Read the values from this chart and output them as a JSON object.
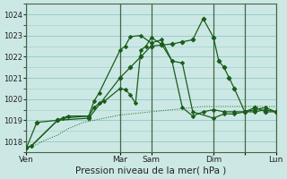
{
  "bg_color": "#cce8e4",
  "grid_color": "#99cccc",
  "line_color": "#1a5c1a",
  "title": "Pression niveau de la mer( hPa )",
  "ylim": [
    1017.5,
    1024.5
  ],
  "yticks": [
    1018,
    1019,
    1020,
    1021,
    1022,
    1023,
    1024
  ],
  "xlim": [
    0,
    48
  ],
  "vlines": [
    0,
    18,
    24,
    36,
    42,
    48
  ],
  "day_tick_pos": [
    0,
    18,
    24,
    36,
    42,
    48
  ],
  "day_tick_labels": [
    "Ven",
    "Mar",
    "Sam",
    "Dim",
    "",
    "Lun"
  ],
  "s1_x": [
    0,
    1,
    2,
    3,
    4,
    5,
    6,
    7,
    8,
    9,
    10,
    11,
    12,
    13,
    14,
    15,
    16,
    17,
    18,
    20,
    22,
    24,
    26,
    28,
    30,
    32,
    34,
    36,
    38,
    40,
    42,
    44,
    46,
    48
  ],
  "s1_y": [
    1017.7,
    1017.8,
    1017.85,
    1018.0,
    1018.1,
    1018.2,
    1018.3,
    1018.45,
    1018.6,
    1018.7,
    1018.8,
    1018.9,
    1018.95,
    1019.0,
    1019.05,
    1019.1,
    1019.15,
    1019.2,
    1019.25,
    1019.3,
    1019.35,
    1019.4,
    1019.45,
    1019.5,
    1019.55,
    1019.6,
    1019.65,
    1019.65,
    1019.65,
    1019.65,
    1019.65,
    1019.65,
    1019.65,
    1019.65
  ],
  "s2_x": [
    0,
    1,
    6,
    7,
    12,
    13,
    14,
    15,
    18,
    19,
    20,
    21,
    22,
    23,
    24,
    26,
    28,
    30,
    32,
    36,
    38,
    40,
    42,
    44,
    46,
    48
  ],
  "s2_y": [
    1017.7,
    1017.8,
    1019.0,
    1019.1,
    1019.2,
    1019.6,
    1019.8,
    1019.9,
    1020.5,
    1020.45,
    1020.2,
    1019.8,
    1022.3,
    1022.5,
    1022.9,
    1022.6,
    1021.8,
    1021.7,
    1019.4,
    1019.1,
    1019.3,
    1019.3,
    1019.4,
    1019.5,
    1019.6,
    1019.4
  ],
  "s3_x": [
    0,
    1,
    6,
    8,
    12,
    13,
    14,
    18,
    19,
    20,
    22,
    24,
    26,
    28,
    30,
    32,
    34,
    36,
    38,
    40,
    42,
    44,
    46,
    48
  ],
  "s3_y": [
    1017.7,
    1017.8,
    1019.0,
    1019.2,
    1019.2,
    1019.9,
    1020.3,
    1022.3,
    1022.5,
    1022.95,
    1023.0,
    1022.65,
    1022.8,
    1021.8,
    1019.6,
    1019.2,
    1019.4,
    1019.5,
    1019.4,
    1019.4,
    1019.4,
    1019.4,
    1019.5,
    1019.4
  ],
  "s4_x": [
    0,
    2,
    6,
    12,
    18,
    20,
    22,
    24,
    26,
    28,
    30,
    32,
    34,
    36,
    37,
    38,
    39,
    40,
    42,
    44,
    46,
    48
  ],
  "s4_y": [
    1017.7,
    1018.9,
    1019.0,
    1019.1,
    1021.0,
    1021.5,
    1022.0,
    1022.5,
    1022.55,
    1022.6,
    1022.7,
    1022.8,
    1023.8,
    1022.9,
    1021.8,
    1021.5,
    1021.0,
    1020.5,
    1019.4,
    1019.6,
    1019.4,
    1019.4
  ]
}
